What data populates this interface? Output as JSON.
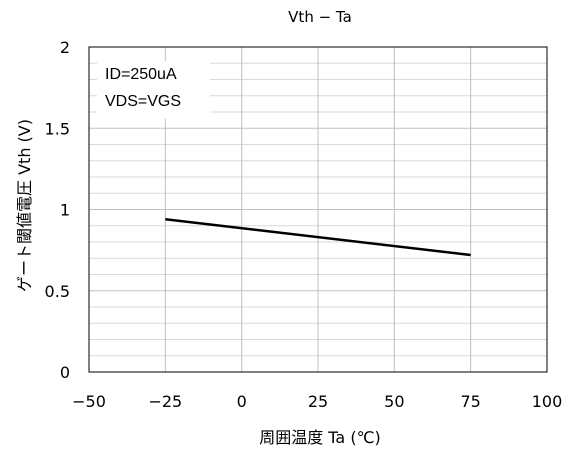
{
  "chart_data": {
    "type": "line",
    "title": "Vth − Ta",
    "xlabel": "周囲温度 Ta (℃)",
    "ylabel": "ゲート閾値電圧 Vth (V)",
    "xlim": [
      -50,
      100
    ],
    "ylim": [
      0,
      2
    ],
    "xticks": [
      -50,
      -25,
      0,
      25,
      50,
      75,
      100
    ],
    "yticks": [
      0,
      0.5,
      1,
      1.5,
      2
    ],
    "grid": true,
    "annotations": [
      "ID=250uA",
      "VDS=VGS"
    ],
    "colors": {
      "line": "#000000",
      "major_grid": "#c0c0c0",
      "minor_grid": "#d9d9d9"
    },
    "series": [
      {
        "x": [
          -25,
          75
        ],
        "y": [
          0.94,
          0.72
        ]
      }
    ]
  }
}
